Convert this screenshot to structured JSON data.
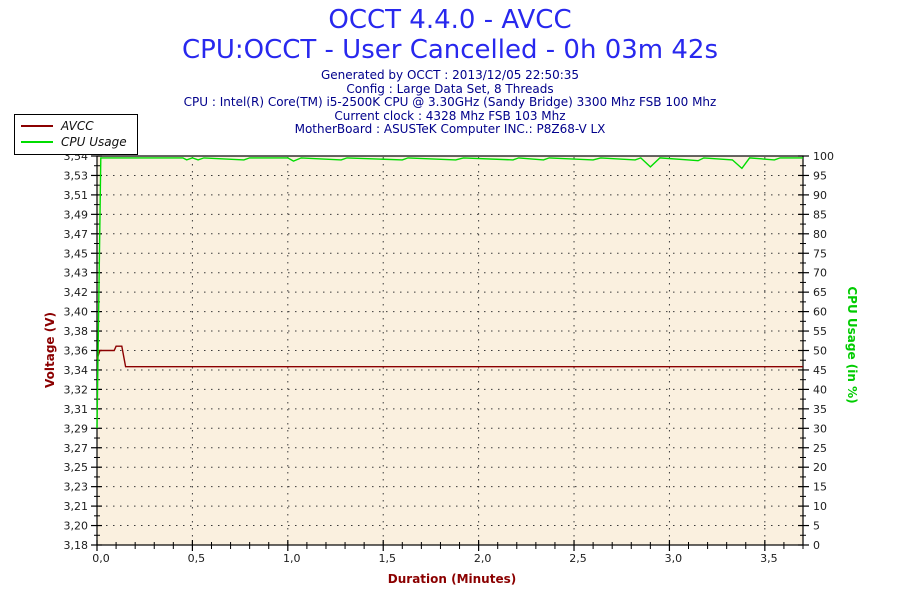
{
  "header_info": [
    "Generated by OCCT : 2013/12/05 22:50:35",
    "Config : Large Data Set, 8 Threads",
    "CPU : Intel(R) Core(TM) i5-2500K CPU @ 3.30GHz (Sandy Bridge) 3300 Mhz FSB 100 Mhz",
    "Current clock : 4328 Mhz FSB 103 Mhz",
    "MotherBoard : ASUSTeK Computer INC.: P8Z68-V LX"
  ],
  "legend": {
    "items": [
      {
        "label": "AVCC",
        "color": "#8b0000"
      },
      {
        "label": "CPU Usage",
        "color": "#00dd00"
      }
    ]
  },
  "colors": {
    "title_blue": "#2828ee",
    "info_navy": "#00008b",
    "plot_bg": "#faf0df",
    "plot_border": "#000000",
    "grid_dots": "#3a3a3a",
    "tick_text": "#1c1c1c",
    "avcc_red": "#8b0000",
    "cpu_green": "#00dd00",
    "green_label": "#00cc00"
  },
  "chart_data": {
    "type": "line",
    "title": "OCCT 4.4.0 - AVCC",
    "subtitle": "CPU:OCCT - User Cancelled - 0h 03m 42s",
    "grid": "dotted, horizontal at every left-axis major tick, vertical at every 0.5 min",
    "legend_position": "top-left, overlapping plot corner",
    "x_axis": {
      "label": "Duration (Minutes)",
      "range": [
        0,
        3.7
      ],
      "major_tick_values": [
        0,
        0.5,
        1.0,
        1.5,
        2.0,
        2.5,
        3.0,
        3.5
      ],
      "tick_labels": [
        "0,0",
        "0,5",
        "1,0",
        "1,5",
        "2,0",
        "2,5",
        "3,0",
        "3,5"
      ],
      "minor_step": 0.1
    },
    "y_left": {
      "label": "Voltage (V)",
      "range": [
        3.18,
        3.54
      ],
      "tick_labels": [
        "3,54",
        "3,53",
        "3,51",
        "3,49",
        "3,47",
        "3,45",
        "3,43",
        "3,42",
        "3,40",
        "3,38",
        "3,36",
        "3,34",
        "3,32",
        "3,31",
        "3,29",
        "3,27",
        "3,25",
        "3,23",
        "3,21",
        "3,20",
        "3,18"
      ]
    },
    "y_right": {
      "label": "CPU Usage (in %)",
      "range": [
        0,
        100
      ],
      "tick_labels": [
        "100",
        "95",
        "90",
        "85",
        "80",
        "75",
        "70",
        "65",
        "60",
        "55",
        "50",
        "45",
        "40",
        "35",
        "30",
        "25",
        "20",
        "15",
        "10",
        "5",
        "0"
      ]
    },
    "series": [
      {
        "name": "AVCC",
        "axis": "left",
        "color": "#8b0000",
        "points": [
          [
            0,
            3.352
          ],
          [
            0.015,
            3.36
          ],
          [
            0.09,
            3.36
          ],
          [
            0.1,
            3.364
          ],
          [
            0.13,
            3.364
          ],
          [
            0.15,
            3.345
          ],
          [
            3.7,
            3.345
          ]
        ]
      },
      {
        "name": "CPU Usage",
        "axis": "right",
        "color": "#00dd00",
        "points": [
          [
            0,
            30
          ],
          [
            0.02,
            99.5
          ],
          [
            0.45,
            99.5
          ],
          [
            0.47,
            99
          ],
          [
            0.5,
            99.5
          ],
          [
            0.53,
            99
          ],
          [
            0.56,
            99.5
          ],
          [
            0.77,
            99
          ],
          [
            0.8,
            99.5
          ],
          [
            1.0,
            99.5
          ],
          [
            1.03,
            98.7
          ],
          [
            1.07,
            99.5
          ],
          [
            1.28,
            99
          ],
          [
            1.31,
            99.5
          ],
          [
            1.6,
            99
          ],
          [
            1.63,
            99.5
          ],
          [
            1.88,
            99
          ],
          [
            1.92,
            99.5
          ],
          [
            2.18,
            99
          ],
          [
            2.21,
            99.5
          ],
          [
            2.34,
            99
          ],
          [
            2.37,
            99.5
          ],
          [
            2.6,
            99
          ],
          [
            2.64,
            99.5
          ],
          [
            2.82,
            99
          ],
          [
            2.85,
            99.5
          ],
          [
            2.9,
            97.2
          ],
          [
            2.95,
            99.5
          ],
          [
            3.1,
            99
          ],
          [
            3.15,
            98.8
          ],
          [
            3.18,
            99.5
          ],
          [
            3.33,
            99
          ],
          [
            3.38,
            96.8
          ],
          [
            3.42,
            99.5
          ],
          [
            3.55,
            99
          ],
          [
            3.58,
            99.5
          ],
          [
            3.7,
            99.5
          ]
        ]
      }
    ]
  }
}
